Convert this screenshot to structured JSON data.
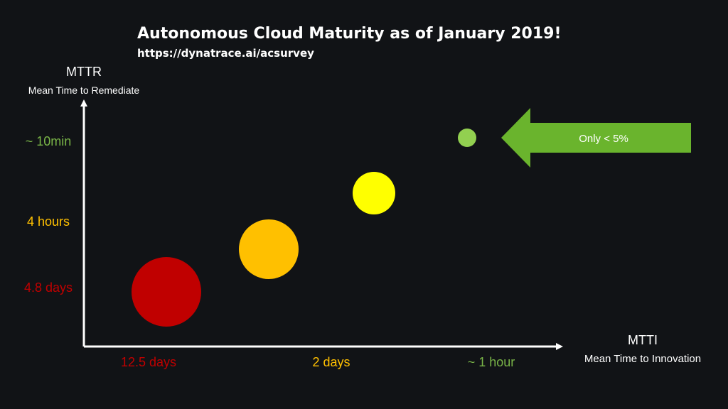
{
  "title": "Autonomous Cloud Maturity as of January 2019!",
  "subtitle": "https://dynatrace.ai/acsurvey",
  "chart_data": {
    "type": "scatter",
    "title": "Autonomous Cloud Maturity as of January 2019!",
    "subtitle": "https://dynatrace.ai/acsurvey",
    "xlabel": "MTTI",
    "xlabel_sub": "Mean Time to Innovation",
    "ylabel": "MTTR",
    "ylabel_sub": "Mean Time to Remediate",
    "x_ticks": [
      {
        "label": "12.5 days",
        "color": "#c00000"
      },
      {
        "label": "2 days",
        "color": "#ffc000"
      },
      {
        "label": "~ 1 hour",
        "color": "#7ab648"
      }
    ],
    "y_ticks": [
      {
        "label": "4.8 days",
        "color": "#c00000"
      },
      {
        "label": "4 hours",
        "color": "#ffc000"
      },
      {
        "label": "~ 10min",
        "color": "#7ab648"
      }
    ],
    "points": [
      {
        "mtti": "12.5 days",
        "mttr": "4.8 days",
        "size": 49,
        "color": "#c00000"
      },
      {
        "mtti": "2 days",
        "mttr": "4 hours",
        "size": 42,
        "color": "#ffc000"
      },
      {
        "mtti": "~ 1 day",
        "mttr": "~ 1 hour",
        "size": 30,
        "color": "#ffff00"
      },
      {
        "mtti": "~ 1 hour",
        "mttr": "~ 10min",
        "size": 13,
        "color": "#92d050"
      }
    ],
    "callout": {
      "label": "Only < 5%",
      "color": "#6ab42d",
      "points_to": "~ 10min / ~ 1 hour"
    },
    "grid": false,
    "legend": "none"
  }
}
